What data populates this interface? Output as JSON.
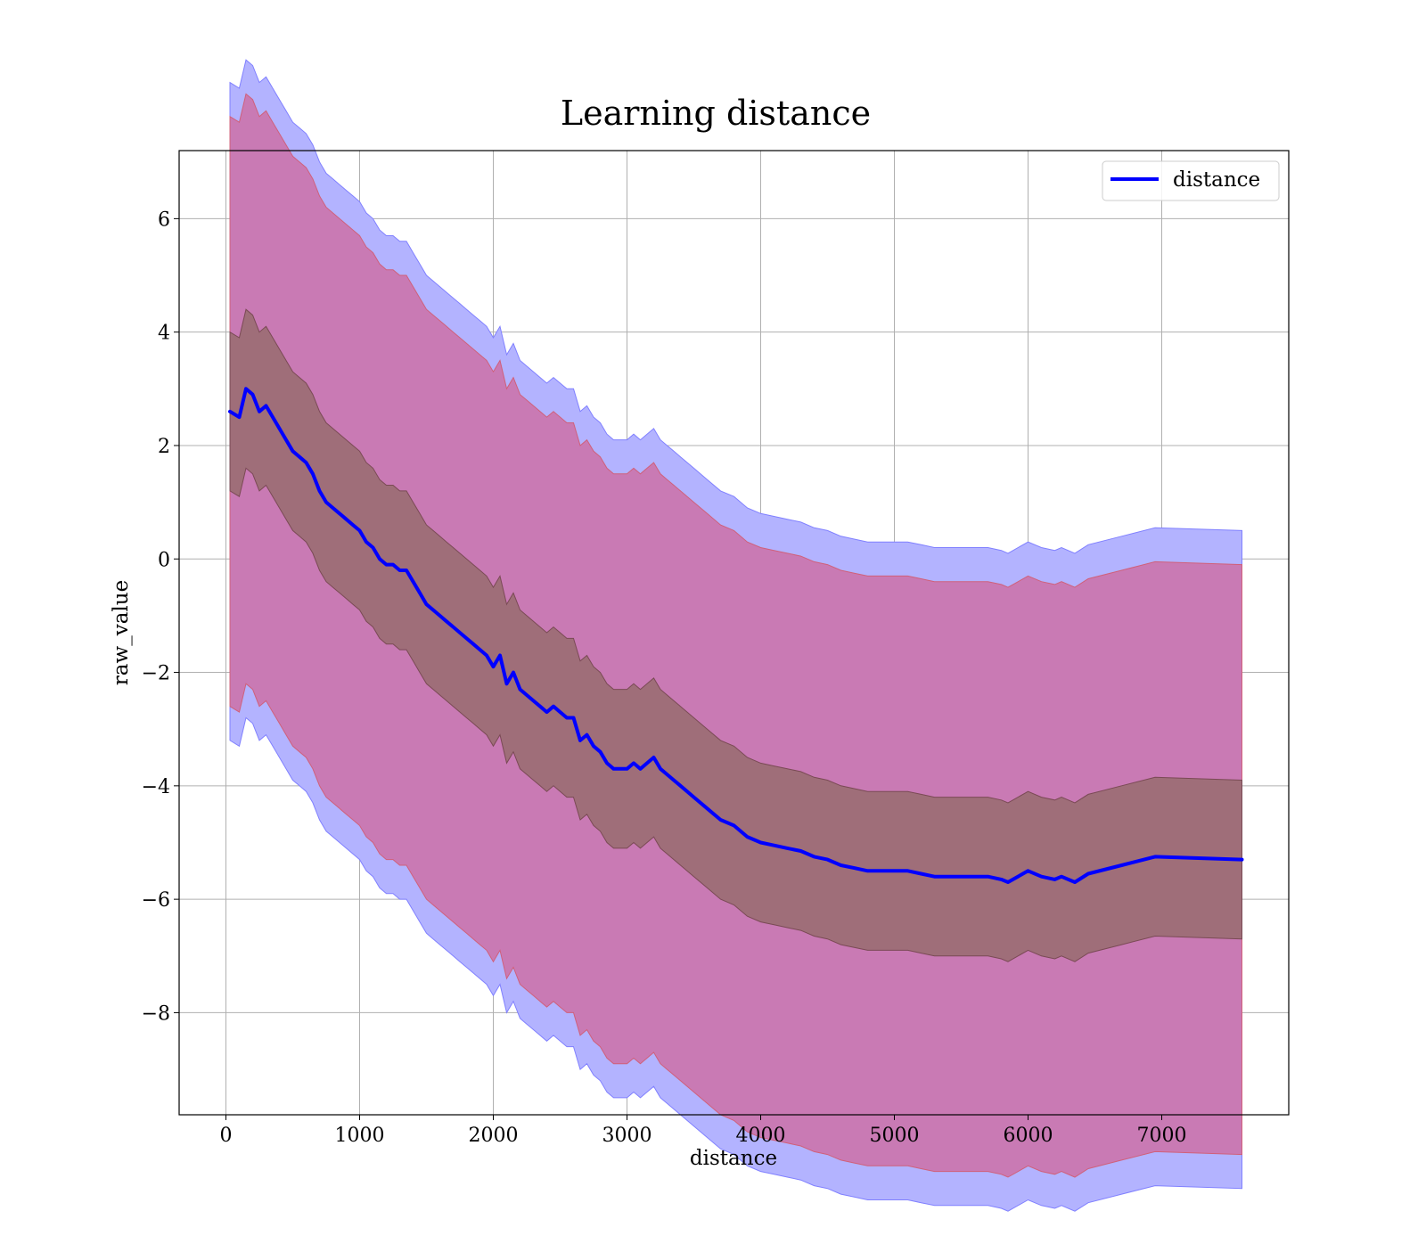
{
  "chart_data": {
    "type": "line",
    "title": "Learning distance",
    "xlabel": "distance",
    "ylabel": "raw_value",
    "xlim": [
      -350,
      7950
    ],
    "ylim": [
      -9.8,
      7.2
    ],
    "xticks": [
      0,
      1000,
      2000,
      3000,
      4000,
      5000,
      6000,
      7000
    ],
    "xtick_labels": [
      "0",
      "1000",
      "2000",
      "3000",
      "4000",
      "5000",
      "6000",
      "7000"
    ],
    "yticks": [
      -8,
      -6,
      -4,
      -2,
      0,
      2,
      4,
      6
    ],
    "ytick_labels": [
      "−8",
      "−6",
      "−4",
      "−2",
      "0",
      "2",
      "4",
      "6"
    ],
    "grid": true,
    "legend": {
      "position": "top-right",
      "entries": [
        "distance"
      ]
    },
    "colors": {
      "line": "#0000ff",
      "outer_band": "#b3b3ff",
      "outer_band_edge": "#8080ff",
      "middle_band": "#c97ab4",
      "middle_band_edge": "#d0607a",
      "inner_band": "#9f6e79",
      "inner_band_edge": "#7a4a55"
    },
    "series": [
      {
        "name": "distance",
        "x": [
          30,
          100,
          150,
          200,
          250,
          300,
          350,
          400,
          450,
          500,
          550,
          600,
          650,
          700,
          750,
          800,
          850,
          900,
          950,
          1000,
          1050,
          1100,
          1150,
          1200,
          1250,
          1300,
          1350,
          1400,
          1450,
          1500,
          1550,
          1600,
          1650,
          1700,
          1750,
          1800,
          1850,
          1900,
          1950,
          2000,
          2050,
          2100,
          2150,
          2200,
          2250,
          2300,
          2350,
          2400,
          2450,
          2500,
          2550,
          2600,
          2650,
          2700,
          2750,
          2800,
          2850,
          2900,
          2950,
          3000,
          3050,
          3100,
          3150,
          3200,
          3250,
          3300,
          3350,
          3400,
          3500,
          3600,
          3700,
          3800,
          3900,
          4000,
          4100,
          4200,
          4300,
          4400,
          4500,
          4600,
          4700,
          4800,
          4900,
          5000,
          5100,
          5200,
          5300,
          5400,
          5500,
          5600,
          5700,
          5800,
          5850,
          6000,
          6100,
          6200,
          6250,
          6350,
          6450,
          6700,
          6950,
          7600
        ],
        "y": [
          2.6,
          2.5,
          3.0,
          2.9,
          2.6,
          2.7,
          2.5,
          2.3,
          2.1,
          1.9,
          1.8,
          1.7,
          1.5,
          1.2,
          1.0,
          0.9,
          0.8,
          0.7,
          0.6,
          0.5,
          0.3,
          0.2,
          0.0,
          -0.1,
          -0.1,
          -0.2,
          -0.2,
          -0.4,
          -0.6,
          -0.8,
          -0.9,
          -1.0,
          -1.1,
          -1.2,
          -1.3,
          -1.4,
          -1.5,
          -1.6,
          -1.7,
          -1.9,
          -1.7,
          -2.2,
          -2.0,
          -2.3,
          -2.4,
          -2.5,
          -2.6,
          -2.7,
          -2.6,
          -2.7,
          -2.8,
          -2.8,
          -3.2,
          -3.1,
          -3.3,
          -3.4,
          -3.6,
          -3.7,
          -3.7,
          -3.7,
          -3.6,
          -3.7,
          -3.6,
          -3.5,
          -3.7,
          -3.8,
          -3.9,
          -4.0,
          -4.2,
          -4.4,
          -4.6,
          -4.7,
          -4.9,
          -5.0,
          -5.05,
          -5.1,
          -5.15,
          -5.25,
          -5.3,
          -5.4,
          -5.45,
          -5.5,
          -5.5,
          -5.5,
          -5.5,
          -5.55,
          -5.6,
          -5.6,
          -5.6,
          -5.6,
          -5.6,
          -5.65,
          -5.7,
          -5.5,
          -5.6,
          -5.65,
          -5.6,
          -5.7,
          -5.55,
          -5.4,
          -5.25,
          -5.3
        ]
      }
    ],
    "bands": [
      {
        "half_width": 5.8,
        "role": "outer"
      },
      {
        "half_width": 5.2,
        "role": "middle"
      },
      {
        "half_width": 1.4,
        "role": "inner"
      }
    ]
  }
}
